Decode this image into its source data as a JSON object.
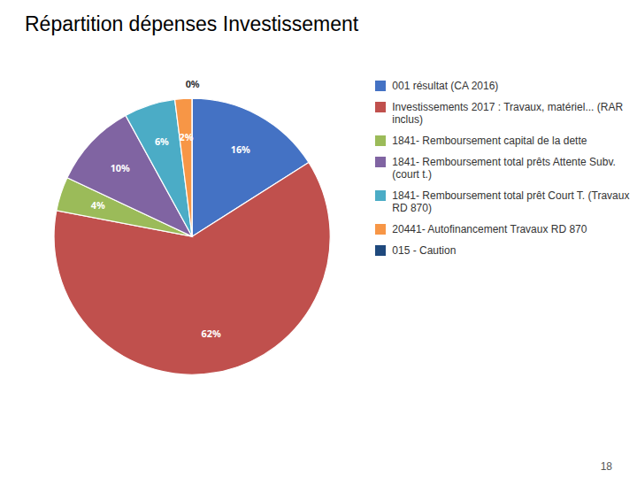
{
  "chart_data": {
    "type": "pie",
    "title": "Répartition dépenses Investissement",
    "categories": [
      "001 résultat (CA 2016)",
      "Investissements 2017 : Travaux, matériel... (RAR inclus)",
      "1841- Remboursement capital de la dette",
      "1841- Remboursement total prêts Attente Subv. (court t.)",
      "1841- Remboursement total prêt Court T. (Travaux RD 870)",
      "20441- Autofinancement Travaux RD 870",
      "015 - Caution"
    ],
    "values": [
      16,
      62,
      4,
      10,
      6,
      2,
      0
    ],
    "value_labels": [
      "16%",
      "62%",
      "4%",
      "10%",
      "6%",
      "2%",
      "0%"
    ],
    "colors": [
      "#4472C4",
      "#C0504D",
      "#9BBB59",
      "#8064A2",
      "#4BACC6",
      "#F79646",
      "#1F497D"
    ],
    "data_labels": true,
    "legend": "right",
    "annotations": [
      "18"
    ]
  }
}
